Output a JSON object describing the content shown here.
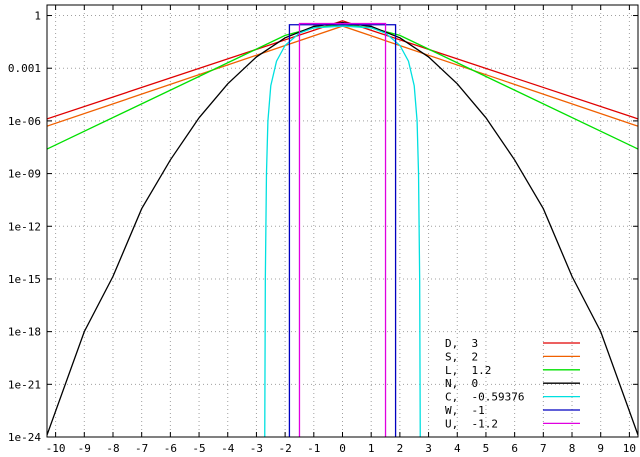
{
  "chart_data": {
    "type": "line",
    "title": "",
    "xlabel": "",
    "ylabel": "",
    "xlim": [
      -10.3,
      10.3
    ],
    "ylim_log10": [
      -24,
      0.6
    ],
    "y_scale": "log",
    "grid": true,
    "legend_placement": "bottom-right",
    "x_ticks": [
      -10,
      -9,
      -8,
      -7,
      -6,
      -5,
      -4,
      -3,
      -2,
      -1,
      0,
      1,
      2,
      3,
      4,
      5,
      6,
      7,
      8,
      9,
      10
    ],
    "x_tick_labels": [
      "-10",
      "-9",
      "-8",
      "-7",
      "-6",
      "-5",
      "-4",
      "-3",
      "-2",
      "-1",
      "0",
      "1",
      "2",
      "3",
      "4",
      "5",
      "6",
      "7",
      "8",
      "9",
      "10"
    ],
    "y_ticks": [
      {
        "label": "1",
        "value": 1
      },
      {
        "label": "0.001",
        "value": 0.001
      },
      {
        "label": "1e-06",
        "value": 1e-06
      },
      {
        "label": "1e-09",
        "value": 1e-09
      },
      {
        "label": "1e-12",
        "value": 1e-12
      },
      {
        "label": "1e-15",
        "value": 1e-15
      },
      {
        "label": "1e-18",
        "value": 1e-18
      },
      {
        "label": "1e-21",
        "value": 1e-21
      },
      {
        "label": "1e-24",
        "value": 1e-24
      }
    ],
    "series": [
      {
        "name": "D,  3",
        "color": "#e00000",
        "points": [
          [
            -10.3,
            1.3e-06
          ],
          [
            0,
            0.5
          ],
          [
            10.3,
            1.3e-06
          ]
        ]
      },
      {
        "name": "S,  2",
        "color": "#f06000",
        "points": [
          [
            -10.3,
            5e-07
          ],
          [
            0,
            0.25
          ],
          [
            10.3,
            5e-07
          ]
        ]
      },
      {
        "name": "L,  1.2",
        "color": "#00e000",
        "points": [
          [
            -10.3,
            2.5e-08
          ],
          [
            -2,
            0.074
          ],
          [
            -1,
            0.2
          ],
          [
            0,
            0.3
          ],
          [
            1,
            0.2
          ],
          [
            2,
            0.074
          ],
          [
            10.3,
            2.5e-08
          ]
        ]
      },
      {
        "name": "N,  0",
        "color": "#000000",
        "points": [
          [
            -10.3,
            1.3e-24
          ],
          [
            -9,
            1e-18
          ],
          [
            -8,
            1.4e-15
          ],
          [
            -7,
            1e-11
          ],
          [
            -6,
            6e-09
          ],
          [
            -5,
            1.5e-06
          ],
          [
            -4,
            0.00013
          ],
          [
            -3,
            0.0044
          ],
          [
            -2,
            0.054
          ],
          [
            -1,
            0.24
          ],
          [
            0,
            0.4
          ],
          [
            1,
            0.24
          ],
          [
            2,
            0.054
          ],
          [
            3,
            0.0044
          ],
          [
            4,
            0.00013
          ],
          [
            5,
            1.5e-06
          ],
          [
            6,
            6e-09
          ],
          [
            7,
            1e-11
          ],
          [
            8,
            1.4e-15
          ],
          [
            9,
            1e-18
          ],
          [
            10.3,
            1.3e-24
          ]
        ]
      },
      {
        "name": "C,  -0.59376",
        "color": "#00e0e0",
        "points": [
          [
            -2.71,
            1e-24
          ],
          [
            -2.69,
            1e-15
          ],
          [
            -2.65,
            1e-09
          ],
          [
            -2.6,
            1e-06
          ],
          [
            -2.5,
            0.0001
          ],
          [
            -2.3,
            0.0025
          ],
          [
            -2,
            0.02
          ],
          [
            -1.5,
            0.1
          ],
          [
            -1,
            0.2
          ],
          [
            0,
            0.25
          ],
          [
            1,
            0.2
          ],
          [
            1.5,
            0.1
          ],
          [
            2,
            0.02
          ],
          [
            2.3,
            0.0025
          ],
          [
            2.5,
            0.0001
          ],
          [
            2.6,
            1e-06
          ],
          [
            2.65,
            1e-09
          ],
          [
            2.69,
            1e-15
          ],
          [
            2.71,
            1e-24
          ]
        ]
      },
      {
        "name": "W,  -1",
        "color": "#0000c0",
        "points": [
          [
            -1.85,
            1e-24
          ],
          [
            -1.85,
            0.3
          ],
          [
            1.85,
            0.3
          ],
          [
            1.85,
            1e-24
          ]
        ]
      },
      {
        "name": "U,  -1.2",
        "color": "#e000e0",
        "points": [
          [
            -1.5,
            1e-24
          ],
          [
            -1.5,
            0.35
          ],
          [
            1.5,
            0.35
          ],
          [
            1.5,
            1e-24
          ]
        ]
      }
    ]
  }
}
